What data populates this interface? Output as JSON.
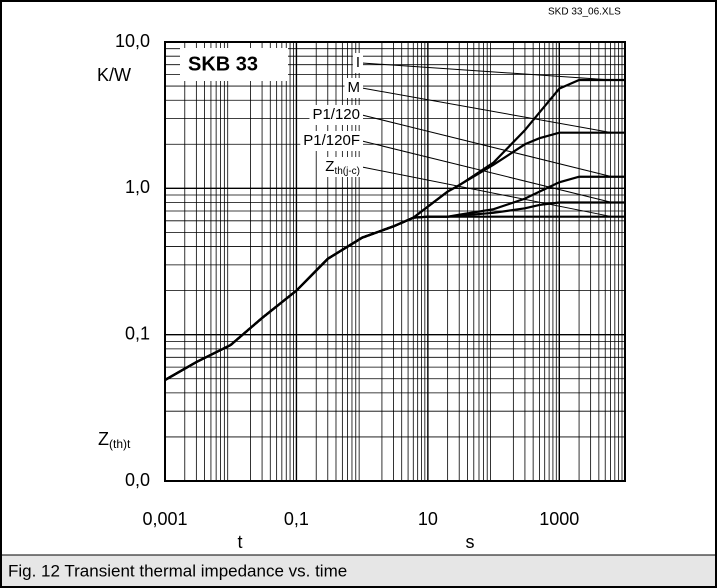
{
  "chart_data": {
    "type": "line",
    "title": "SKB 33",
    "file_label": "SKD 33_06.XLS",
    "caption": "Fig. 12 Transient thermal impedance vs. time",
    "y_unit": "K/W",
    "y_label": {
      "main": "Z",
      "sub": "(th)t"
    },
    "x_label": "t",
    "x_unit": "s",
    "log_x": true,
    "log_y": true,
    "grid": true,
    "minor_grid": true,
    "xlim": [
      0.001,
      10000
    ],
    "ylim": [
      0.01,
      10
    ],
    "xticks": [
      {
        "value": 0.001,
        "label": "0,001"
      },
      {
        "value": 0.1,
        "label": "0,1"
      },
      10,
      1000
    ],
    "yticks": [
      {
        "value": 0.01,
        "label": "0,0"
      },
      {
        "value": 0.1,
        "label": "0,1"
      },
      {
        "value": 1,
        "label": "1,0"
      },
      {
        "value": 10,
        "label": "10,0"
      }
    ],
    "x": [
      0.001,
      0.003,
      0.01,
      0.03,
      0.1,
      0.3,
      1,
      3,
      6,
      10,
      20,
      30,
      100,
      300,
      500,
      1000,
      2000,
      10000
    ],
    "series": [
      {
        "name": "I",
        "color": "#000000",
        "values": [
          0.049,
          0.065,
          0.085,
          0.13,
          0.2,
          0.33,
          0.46,
          0.55,
          0.63,
          0.75,
          0.95,
          1.05,
          1.5,
          2.5,
          3.3,
          4.8,
          5.5,
          5.5
        ]
      },
      {
        "name": "M",
        "color": "#000000",
        "values": [
          0.049,
          0.065,
          0.085,
          0.13,
          0.2,
          0.33,
          0.46,
          0.55,
          0.63,
          0.75,
          0.95,
          1.05,
          1.45,
          2.0,
          2.2,
          2.4,
          2.4,
          2.4
        ]
      },
      {
        "name": "P1/120",
        "color": "#000000",
        "values": [
          0.049,
          0.065,
          0.085,
          0.13,
          0.2,
          0.33,
          0.46,
          0.55,
          0.63,
          0.64,
          0.64,
          0.66,
          0.72,
          0.85,
          0.95,
          1.1,
          1.2,
          1.2
        ]
      },
      {
        "name": "P1/120F",
        "color": "#000000",
        "values": [
          0.049,
          0.065,
          0.085,
          0.13,
          0.2,
          0.33,
          0.46,
          0.55,
          0.63,
          0.64,
          0.64,
          0.65,
          0.68,
          0.73,
          0.77,
          0.8,
          0.8,
          0.8
        ]
      },
      {
        "name": {
          "main": "Z",
          "sub": "th(j-c)"
        },
        "color": "#000000",
        "values": [
          0.049,
          0.065,
          0.085,
          0.13,
          0.2,
          0.33,
          0.46,
          0.55,
          0.63,
          0.64,
          0.64,
          0.64,
          0.64,
          0.64,
          0.64,
          0.64,
          0.64,
          0.64
        ]
      }
    ]
  }
}
